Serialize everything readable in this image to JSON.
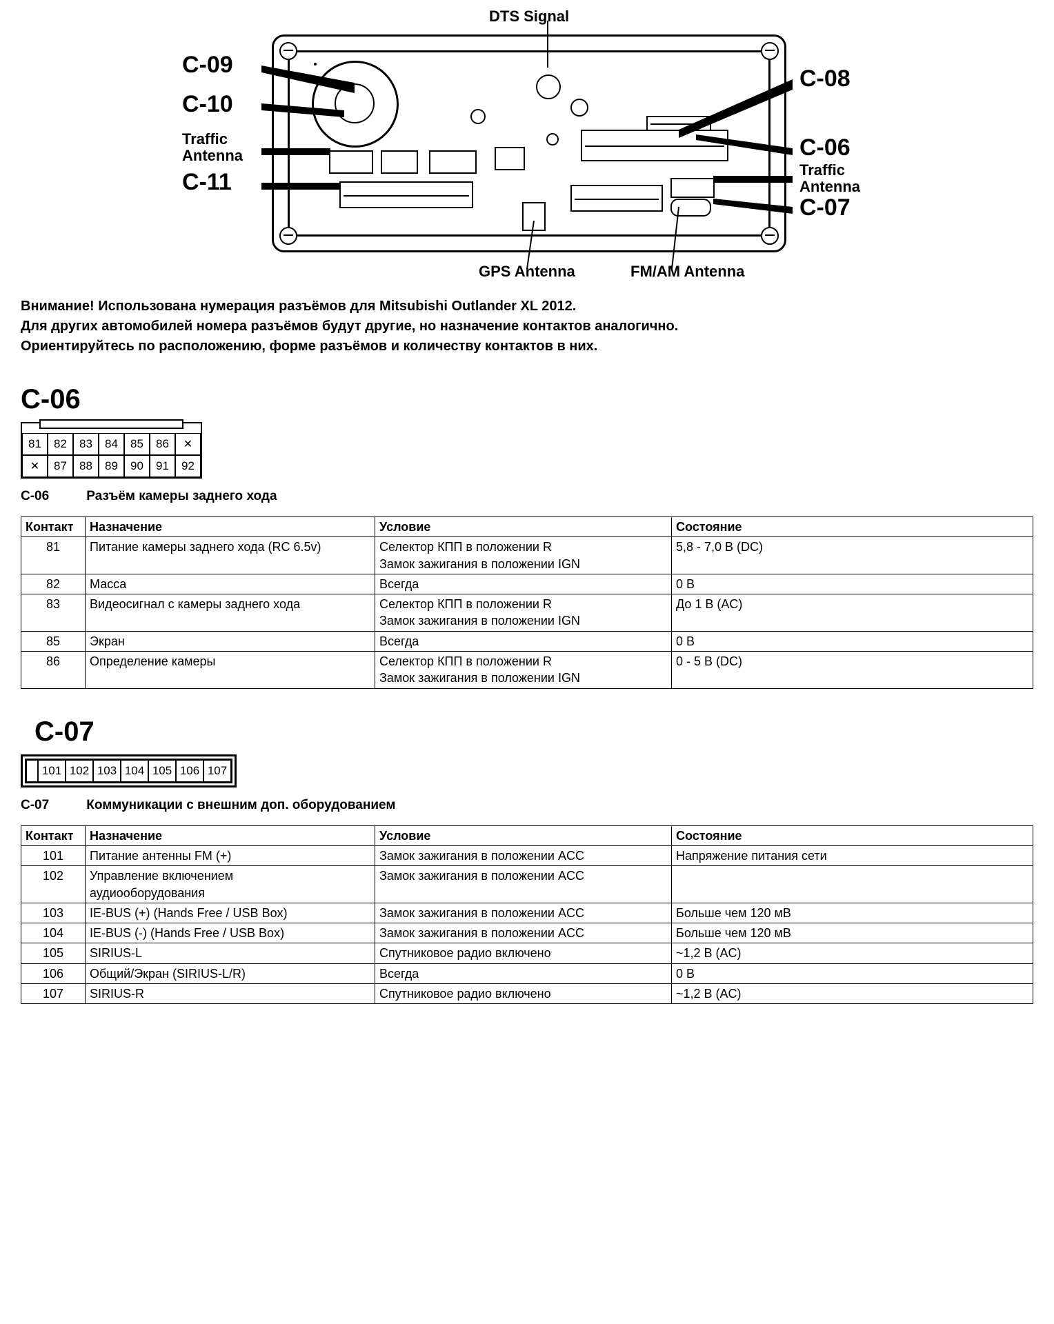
{
  "diagram": {
    "labels": {
      "dts": "DTS Signal",
      "c09": "C-09",
      "c10": "C-10",
      "traffic_l": "Traffic\nAntenna",
      "c11": "C-11",
      "c08": "C-08",
      "c06": "C-06",
      "traffic_r": "Traffic\nAntenna",
      "c07": "C-07",
      "gps": "GPS Antenna",
      "fmam": "FM/AM Antenna"
    }
  },
  "note": {
    "l1": "Внимание! Использована нумерация разъёмов для Mitsubishi Outlander XL 2012.",
    "l2": "Для других автомобилей номера разъёмов будут другие, но назначение контактов аналогично.",
    "l3": "Ориентируйтесь по расположению, форме разъёмов и количеству контактов в них."
  },
  "c06": {
    "head": "C-06",
    "pins_top": [
      "81",
      "82",
      "83",
      "84",
      "85",
      "86",
      "X"
    ],
    "pins_bot": [
      "X",
      "87",
      "88",
      "89",
      "90",
      "91",
      "92"
    ],
    "subtitle_code": "C-06",
    "subtitle_text": "Разъём камеры заднего хода",
    "cols": [
      "Контакт",
      "Назначение",
      "Условие",
      "Состояние"
    ],
    "rows": [
      {
        "n": "81",
        "a": "Питание камеры заднего хода (RC 6.5v)",
        "c": "Селектор КПП в положении R\nЗамок зажигания в положении IGN",
        "s": "5,8 - 7,0 В (DC)"
      },
      {
        "n": "82",
        "a": "Масса",
        "c": "Всегда",
        "s": "0 В"
      },
      {
        "n": "83",
        "a": "Видеосигнал с камеры заднего хода",
        "c": "Селектор КПП в положении R\nЗамок зажигания в положении IGN",
        "s": "До 1 В (AC)"
      },
      {
        "n": "85",
        "a": "Экран",
        "c": "Всегда",
        "s": "0 В"
      },
      {
        "n": "86",
        "a": "Определение камеры",
        "c": "Селектор КПП в положении R\nЗамок зажигания в положении IGN",
        "s": "0 - 5 В (DC)"
      }
    ]
  },
  "c07": {
    "head": "C-07",
    "pins": [
      "101",
      "102",
      "103",
      "104",
      "105",
      "106",
      "107"
    ],
    "subtitle_code": "C-07",
    "subtitle_text": "Коммуникации с внешним доп. оборудованием",
    "cols": [
      "Контакт",
      "Назначение",
      "Условие",
      "Состояние"
    ],
    "rows": [
      {
        "n": "101",
        "a": "Питание антенны FM (+)",
        "c": "Замок зажигания в положении ACC",
        "s": "Напряжение питания сети"
      },
      {
        "n": "102",
        "a": "Управление включением\nаудиооборудования",
        "c": "Замок зажигания в положении ACC",
        "s": ""
      },
      {
        "n": "103",
        "a": "IE-BUS (+) (Hands Free / USB Box)",
        "c": "Замок зажигания в положении ACC",
        "s": "Больше чем 120 мВ"
      },
      {
        "n": "104",
        "a": "IE-BUS (-) (Hands Free / USB Box)",
        "c": "Замок зажигания в положении ACC",
        "s": "Больше чем 120 мВ"
      },
      {
        "n": "105",
        "a": "SIRIUS-L",
        "c": "Спутниковое радио включено",
        "s": "~1,2 В (AC)"
      },
      {
        "n": "106",
        "a": "Общий/Экран (SIRIUS-L/R)",
        "c": "Всегда",
        "s": "0 В"
      },
      {
        "n": "107",
        "a": "SIRIUS-R",
        "c": "Спутниковое радио включено",
        "s": "~1,2 В (AC)"
      }
    ]
  }
}
